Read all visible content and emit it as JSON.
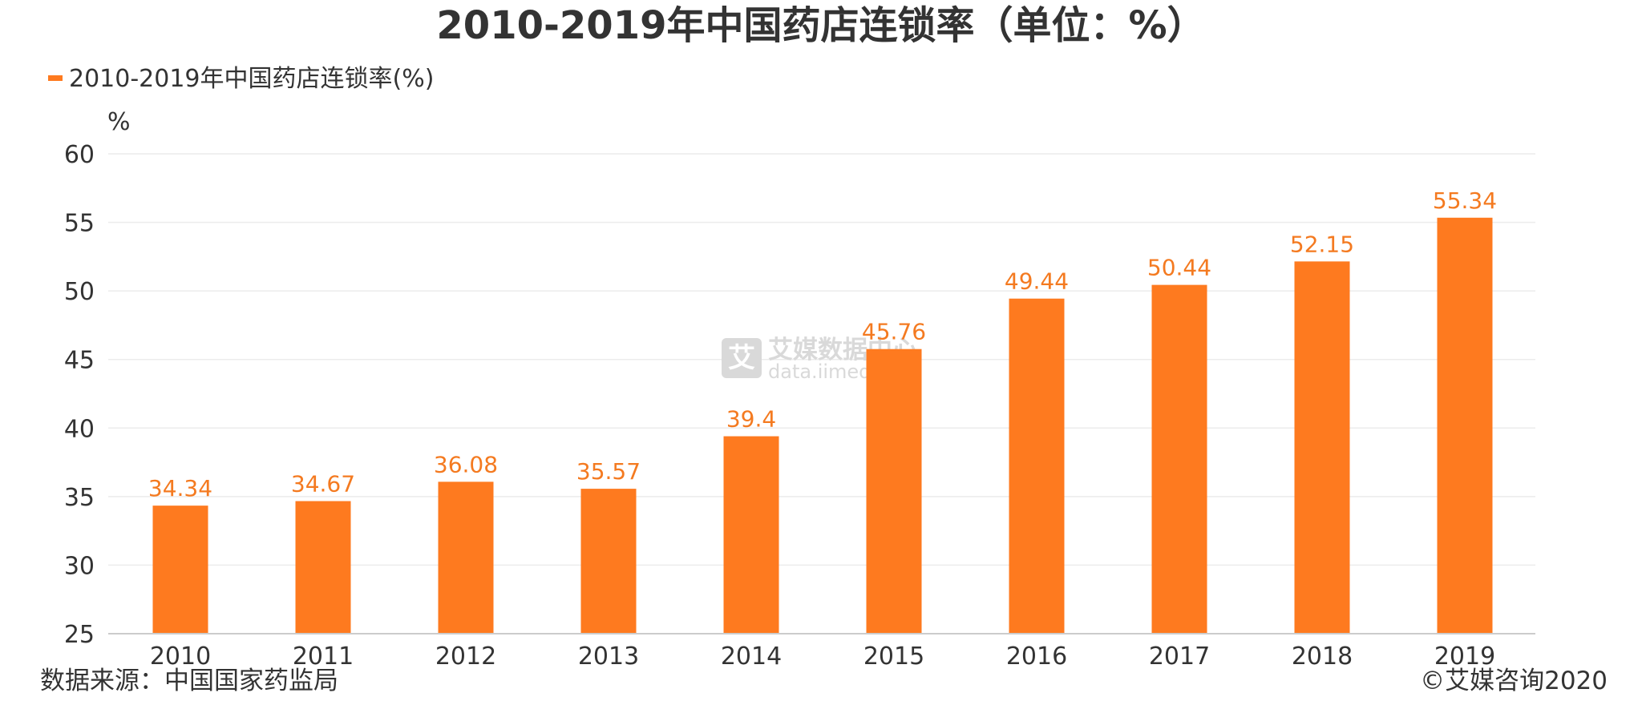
{
  "colors": {
    "bar": "#FE7A1F",
    "label": "#F47A20",
    "grid": "#ececec",
    "axis": "#cccccc",
    "text": "#333333"
  },
  "chart_data": {
    "type": "bar",
    "title": "2010-2019年中国药店连锁率（单位：%）",
    "legend": {
      "label": "2010-2019年中国药店连锁率(%)",
      "position": "top-left"
    },
    "ylabel": "%",
    "xlabel": "",
    "ylim": [
      25,
      60
    ],
    "yticks": [
      25,
      30,
      35,
      40,
      45,
      50,
      55,
      60
    ],
    "grid": true,
    "categories": [
      "2010",
      "2011",
      "2012",
      "2013",
      "2014",
      "2015",
      "2016",
      "2017",
      "2018",
      "2019"
    ],
    "series": [
      {
        "name": "2010-2019年中国药店连锁率(%)",
        "values": [
          34.34,
          34.67,
          36.08,
          35.57,
          39.4,
          45.76,
          49.44,
          50.44,
          52.15,
          55.34
        ]
      }
    ],
    "data_labels": [
      "34.34",
      "34.67",
      "36.08",
      "35.57",
      "39.4",
      "45.76",
      "49.44",
      "50.44",
      "52.15",
      "55.34"
    ]
  },
  "source": "数据来源：中国国家药监局",
  "copyright": "©艾媒咨询2020",
  "watermark": {
    "logo_char": "艾",
    "name": "艾媒数据中心",
    "url": "data.iimedia.cn"
  }
}
